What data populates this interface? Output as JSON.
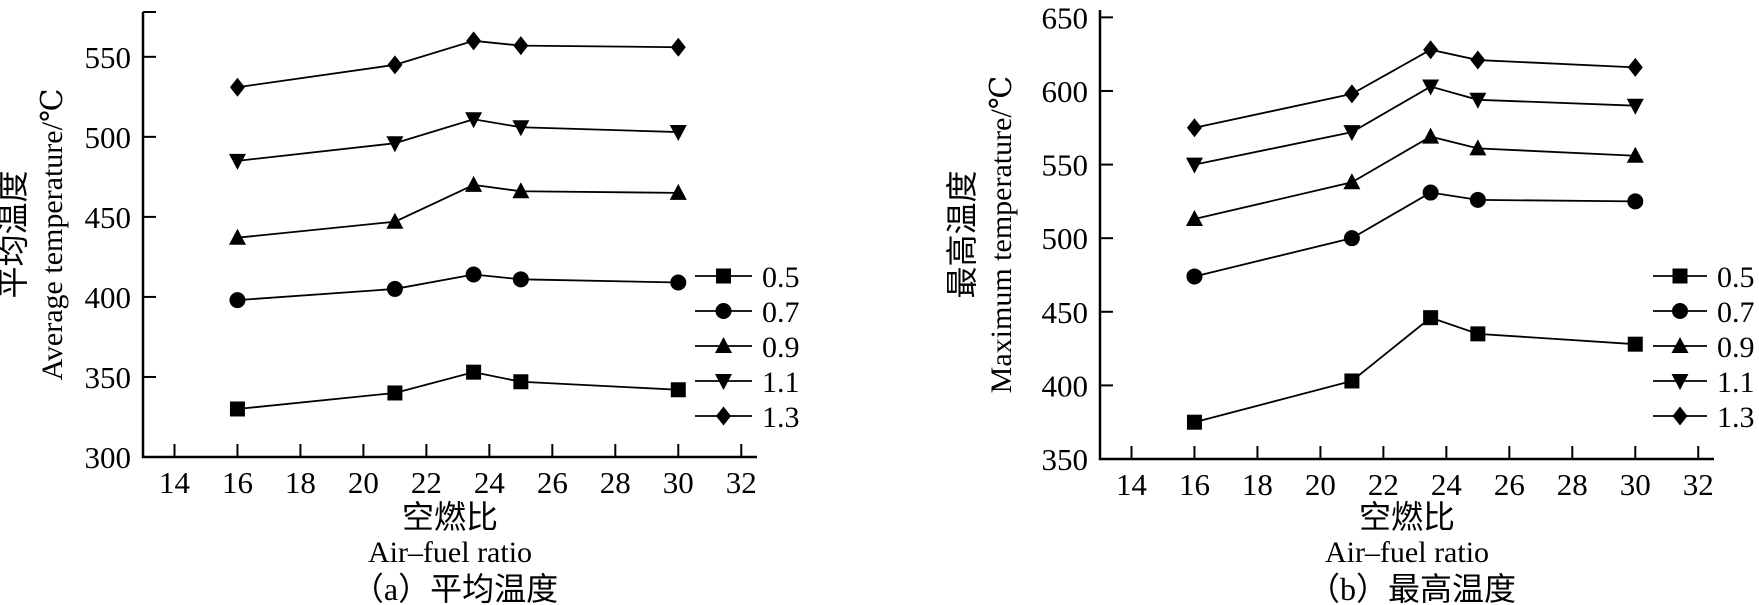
{
  "figure": {
    "background": "#ffffff",
    "ink": "#000000"
  },
  "chart_data": [
    {
      "id": "a",
      "type": "line",
      "x": [
        16,
        21,
        23.5,
        25,
        30
      ],
      "xticks": [
        14,
        16,
        18,
        20,
        22,
        24,
        26,
        28,
        30,
        32
      ],
      "yticks": [
        300,
        350,
        400,
        450,
        500,
        550
      ],
      "xlim": [
        13,
        32.5
      ],
      "ylim": [
        300,
        578
      ],
      "grid": false,
      "legend_position": "right",
      "xlabel_cn": "空燃比",
      "xlabel_en": "Air–fuel ratio",
      "ylabel_cn": "平均温度",
      "ylabel_en": "Average temperature/℃",
      "caption": "（a）平均温度",
      "series": [
        {
          "name": "0.5",
          "marker": "square",
          "values": [
            330,
            340,
            353,
            347,
            342
          ]
        },
        {
          "name": "0.7",
          "marker": "circle",
          "values": [
            398,
            405,
            414,
            411,
            409
          ]
        },
        {
          "name": "0.9",
          "marker": "triangle-up",
          "values": [
            437,
            447,
            470,
            466,
            465
          ]
        },
        {
          "name": "1.1",
          "marker": "triangle-down",
          "values": [
            485,
            496,
            511,
            506,
            503
          ]
        },
        {
          "name": "1.3",
          "marker": "diamond",
          "values": [
            531,
            545,
            560,
            557,
            556
          ]
        }
      ]
    },
    {
      "id": "b",
      "type": "line",
      "x": [
        16,
        21,
        23.5,
        25,
        30
      ],
      "xticks": [
        14,
        16,
        18,
        20,
        22,
        24,
        26,
        28,
        30,
        32
      ],
      "yticks": [
        350,
        400,
        450,
        500,
        550,
        600,
        650
      ],
      "xlim": [
        13,
        32.5
      ],
      "ylim": [
        350,
        655
      ],
      "grid": false,
      "legend_position": "right",
      "xlabel_cn": "空燃比",
      "xlabel_en": "Air–fuel ratio",
      "ylabel_cn": "最高温度",
      "ylabel_en": "Maximum temperature/℃",
      "caption": "（b）最高温度",
      "series": [
        {
          "name": "0.5",
          "marker": "square",
          "values": [
            375,
            403,
            446,
            435,
            428
          ]
        },
        {
          "name": "0.7",
          "marker": "circle",
          "values": [
            474,
            500,
            531,
            526,
            525
          ]
        },
        {
          "name": "0.9",
          "marker": "triangle-up",
          "values": [
            513,
            538,
            569,
            561,
            556
          ]
        },
        {
          "name": "1.1",
          "marker": "triangle-down",
          "values": [
            550,
            572,
            603,
            594,
            590
          ]
        },
        {
          "name": "1.3",
          "marker": "diamond",
          "values": [
            575,
            598,
            628,
            621,
            616
          ]
        }
      ]
    }
  ]
}
